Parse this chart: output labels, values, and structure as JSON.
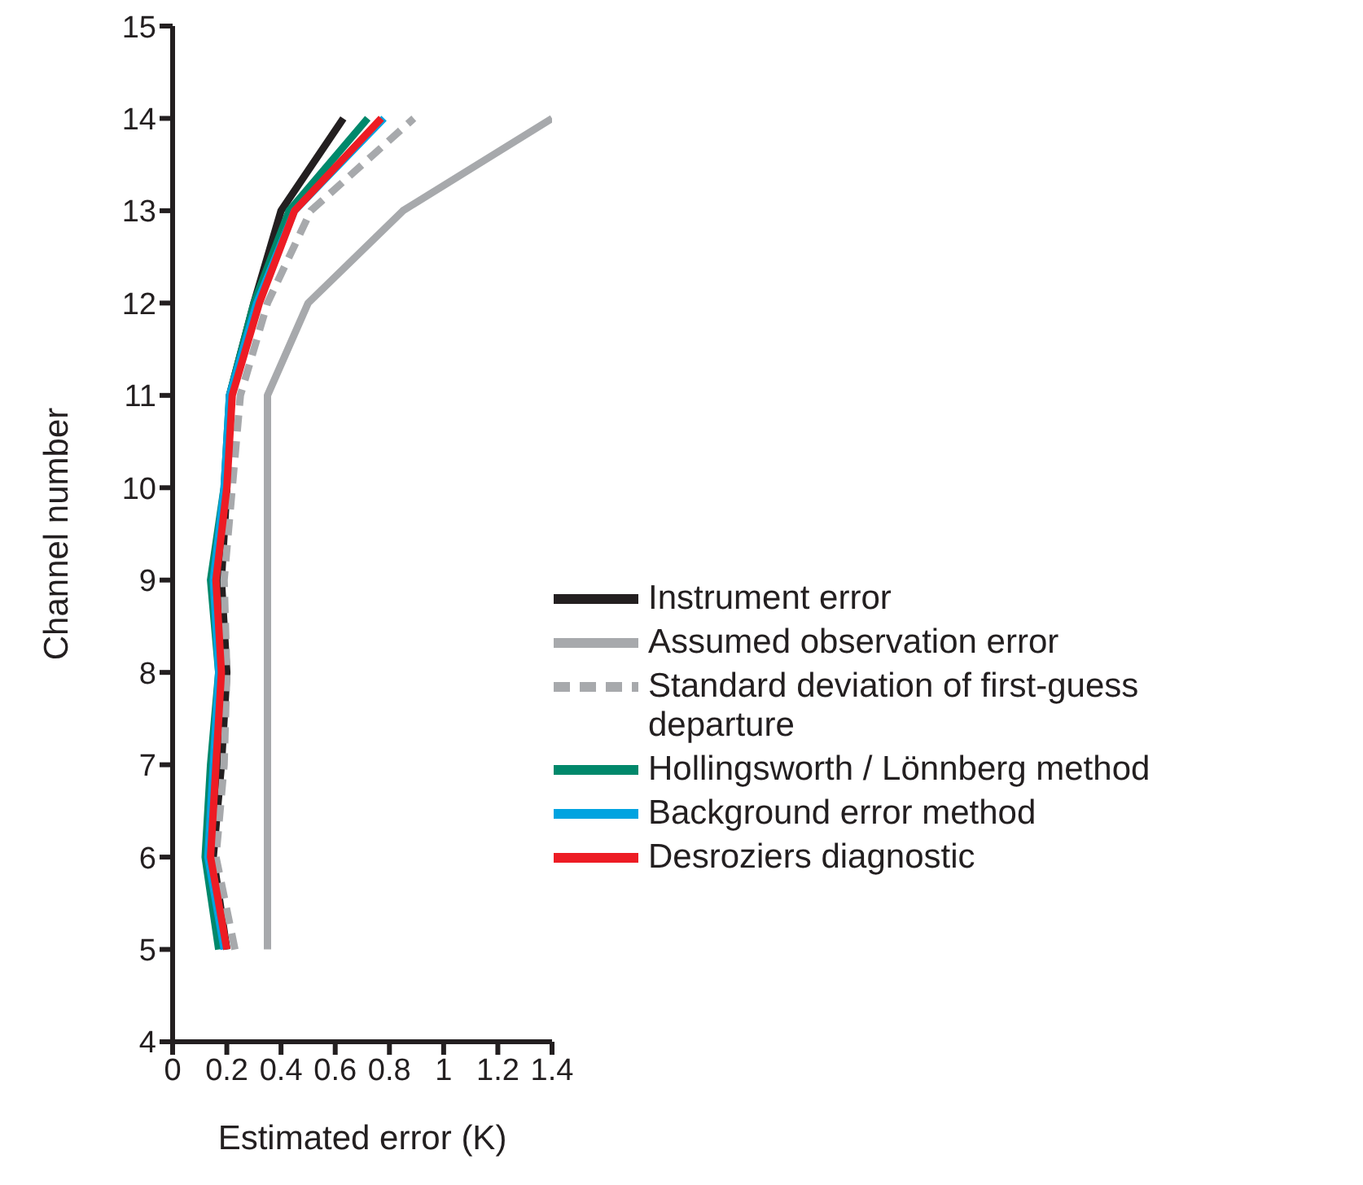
{
  "chart_data": {
    "type": "line",
    "xlabel": "Estimated error (K)",
    "ylabel": "Channel number",
    "xlim": [
      0,
      1.4
    ],
    "xticks": [
      0,
      0.2,
      0.4,
      0.6,
      0.8,
      1,
      1.2,
      1.4
    ],
    "ylim": [
      4,
      15
    ],
    "yticks": [
      4,
      5,
      6,
      7,
      8,
      9,
      10,
      11,
      12,
      13,
      14,
      15
    ],
    "grid": false,
    "legend": "right",
    "marker": "none",
    "series": [
      {
        "name": "Instrument error",
        "color": "#231f20",
        "x": [
          0.2,
          0.15,
          0.18,
          0.2,
          0.18,
          0.2,
          0.21,
          0.3,
          0.4,
          0.63
        ],
        "values": [
          5,
          6,
          7,
          8,
          9,
          10,
          11,
          12,
          13,
          14
        ]
      },
      {
        "name": "Assumed observation error",
        "color": "#a7a9ac",
        "x": [
          0.35,
          0.35,
          0.35,
          0.35,
          0.35,
          0.35,
          0.35,
          0.5,
          0.85,
          1.4
        ],
        "values": [
          5,
          6,
          7,
          8,
          9,
          10,
          11,
          12,
          13,
          14
        ]
      },
      {
        "name": "Standard deviation of first-guess departure",
        "color": "#a7a9ac",
        "line_style": "dashed",
        "x": [
          0.23,
          0.16,
          0.19,
          0.2,
          0.19,
          0.22,
          0.25,
          0.35,
          0.51,
          0.89
        ],
        "values": [
          5,
          6,
          7,
          8,
          9,
          10,
          11,
          12,
          13,
          14
        ]
      },
      {
        "name": "Hollingsworth / Lönnberg method",
        "color": "#00886b",
        "x": [
          0.17,
          0.12,
          0.14,
          0.17,
          0.14,
          0.19,
          0.21,
          0.3,
          0.43,
          0.72
        ],
        "values": [
          5,
          6,
          7,
          8,
          9,
          10,
          11,
          12,
          13,
          14
        ]
      },
      {
        "name": "Background error method",
        "color": "#00a3e0",
        "x": [
          0.19,
          0.13,
          0.15,
          0.17,
          0.15,
          0.19,
          0.21,
          0.31,
          0.45,
          0.78
        ],
        "values": [
          5,
          6,
          7,
          8,
          9,
          10,
          11,
          12,
          13,
          14
        ]
      },
      {
        "name": "Desroziers diagnostic",
        "color": "#ed1c24",
        "x": [
          0.2,
          0.14,
          0.16,
          0.18,
          0.16,
          0.2,
          0.22,
          0.32,
          0.45,
          0.77
        ],
        "values": [
          5,
          6,
          7,
          8,
          9,
          10,
          11,
          12,
          13,
          14
        ]
      }
    ]
  }
}
